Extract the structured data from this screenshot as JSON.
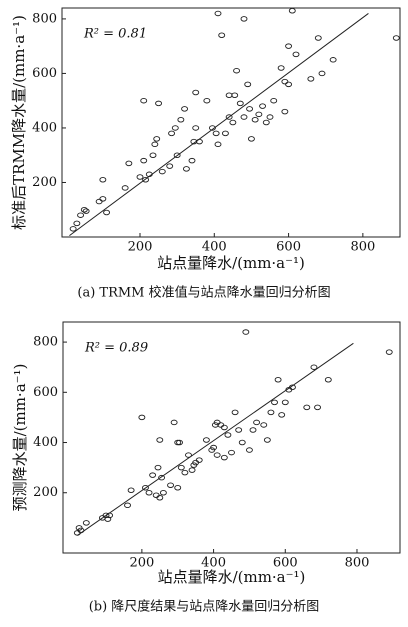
{
  "chart_data": [
    {
      "type": "scatter",
      "annotation": "R² = 0.81",
      "x_label": "站点量降水/(mm·a⁻¹)",
      "y_label": "标准后TRMM降水量/(mm·a⁻¹)",
      "caption": "(a) TRMM 校准值与站点降水量回归分析图",
      "xlim": [
        -10,
        900
      ],
      "ylim": [
        0,
        840
      ],
      "xticks": [
        200,
        400,
        600,
        800
      ],
      "yticks": [
        200,
        400,
        600,
        800
      ],
      "color": "#222222",
      "x": [
        20,
        30,
        40,
        50,
        55,
        90,
        100,
        100,
        110,
        160,
        170,
        200,
        210,
        210,
        215,
        225,
        235,
        240,
        245,
        250,
        260,
        280,
        285,
        295,
        300,
        310,
        320,
        325,
        340,
        345,
        350,
        350,
        360,
        380,
        395,
        405,
        410,
        410,
        420,
        430,
        440,
        440,
        450,
        460,
        470,
        480,
        480,
        490,
        495,
        510,
        520,
        530,
        540,
        550,
        560,
        580,
        590,
        590,
        600,
        600,
        610,
        620,
        660,
        680,
        690,
        720,
        890,
        500,
        455
      ],
      "y": [
        30,
        50,
        80,
        100,
        95,
        130,
        210,
        140,
        90,
        180,
        270,
        220,
        500,
        280,
        210,
        230,
        300,
        340,
        360,
        490,
        240,
        260,
        380,
        400,
        300,
        430,
        470,
        250,
        280,
        350,
        400,
        530,
        350,
        500,
        400,
        380,
        820,
        340,
        740,
        380,
        520,
        440,
        420,
        610,
        490,
        440,
        800,
        560,
        470,
        430,
        450,
        480,
        420,
        440,
        500,
        620,
        460,
        570,
        560,
        700,
        830,
        670,
        580,
        730,
        600,
        650,
        730,
        360,
        520
      ],
      "fit": {
        "x": [
          10,
          815
        ],
        "y": [
          5,
          820
        ]
      }
    },
    {
      "type": "scatter",
      "annotation": "R² = 0.89",
      "x_label": "站点量降水/(mm·a⁻¹)",
      "y_label": "预测降水量/(mm·a⁻¹)",
      "caption": "(b) 降尺度结果与站点降水量回归分析图",
      "xlim": [
        -20,
        920
      ],
      "ylim": [
        -40,
        880
      ],
      "xticks": [
        200,
        400,
        600,
        800
      ],
      "yticks": [
        200,
        400,
        600,
        800
      ],
      "color": "#222222",
      "x": [
        20,
        25,
        30,
        45,
        90,
        100,
        105,
        110,
        160,
        170,
        200,
        210,
        220,
        230,
        240,
        245,
        250,
        255,
        260,
        280,
        290,
        300,
        305,
        310,
        320,
        330,
        340,
        345,
        350,
        360,
        380,
        395,
        400,
        405,
        410,
        410,
        420,
        430,
        440,
        450,
        460,
        470,
        480,
        490,
        500,
        510,
        520,
        540,
        550,
        560,
        570,
        580,
        590,
        600,
        610,
        620,
        660,
        680,
        690,
        720,
        890,
        250,
        300,
        430
      ],
      "y": [
        40,
        60,
        50,
        80,
        100,
        110,
        95,
        110,
        150,
        210,
        500,
        220,
        200,
        270,
        190,
        300,
        410,
        260,
        200,
        230,
        480,
        220,
        400,
        300,
        280,
        350,
        290,
        310,
        320,
        330,
        410,
        370,
        380,
        470,
        350,
        480,
        470,
        340,
        430,
        360,
        520,
        450,
        400,
        840,
        370,
        450,
        480,
        470,
        410,
        520,
        560,
        650,
        510,
        560,
        610,
        620,
        540,
        700,
        540,
        650,
        760,
        180,
        400,
        460
      ],
      "fit": {
        "x": [
          20,
          790
        ],
        "y": [
          30,
          795
        ]
      }
    }
  ]
}
